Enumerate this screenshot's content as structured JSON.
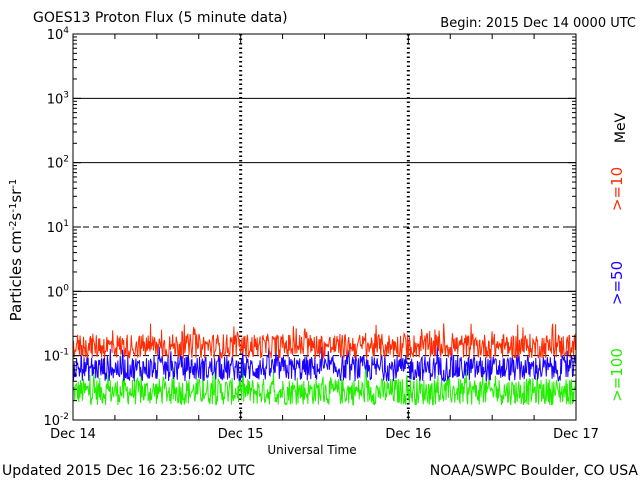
{
  "header": {
    "title": "GOES13 Proton Flux (5 minute data)",
    "begin": "Begin: 2015 Dec 14 0000 UTC"
  },
  "footer": {
    "updated": "Updated 2015 Dec 16 23:56:02 UTC",
    "credit": "NOAA/SWPC Boulder, CO USA"
  },
  "chart_data": {
    "type": "line",
    "title": "GOES13 Proton Flux (5 minute data)",
    "xlabel": "Universal Time",
    "ylabel": "Particles cm⁻²s⁻¹sr⁻¹",
    "y_scale": "log",
    "ylim": [
      0.01,
      10000
    ],
    "x_ticks": [
      {
        "label": "Dec 14",
        "day": 0
      },
      {
        "label": "Dec 15",
        "day": 1
      },
      {
        "label": "Dec 16",
        "day": 2
      },
      {
        "label": "Dec 17",
        "day": 3
      }
    ],
    "y_ticks": [
      {
        "base": "10",
        "exp": "-2",
        "value": 0.01
      },
      {
        "base": "10",
        "exp": "-1",
        "value": 0.1
      },
      {
        "base": "10",
        "exp": "0",
        "value": 1
      },
      {
        "base": "10",
        "exp": "1",
        "value": 10
      },
      {
        "base": "10",
        "exp": "2",
        "value": 100
      },
      {
        "base": "10",
        "exp": "3",
        "value": 1000
      },
      {
        "base": "10",
        "exp": "4",
        "value": 10000
      }
    ],
    "threshold_lines": [
      {
        "value": 10,
        "style": "dashed"
      },
      {
        "value": 0.1,
        "style": "dashed"
      }
    ],
    "series": [
      {
        "name": ">=10",
        "color": "#ff2a00",
        "typical_low": 0.09,
        "typical_high": 0.22,
        "peak": 0.32
      },
      {
        "name": ">=50",
        "color": "#1a00ff",
        "typical_low": 0.04,
        "typical_high": 0.1,
        "peak": 0.14
      },
      {
        "name": ">=100",
        "color": "#22ee00",
        "typical_low": 0.017,
        "typical_high": 0.045,
        "peak": 0.07
      }
    ],
    "legend": {
      "unit": "MeV",
      "position": "right",
      "orientation": "vertical"
    }
  }
}
